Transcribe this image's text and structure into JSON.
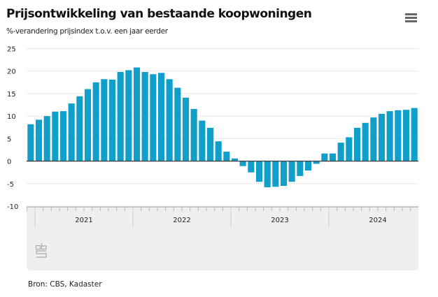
{
  "header": {
    "title": "Prijsontwikkeling van bestaande koopwoningen",
    "subtitle": "%-verandering prijsindex t.o.v. een jaar eerder",
    "menu_icon": "hamburger-menu-icon"
  },
  "footer": {
    "source": "Bron: CBS, Kadaster"
  },
  "colors": {
    "bar": "#109fcb",
    "grid": "#e6e6e6",
    "navigator": "#efefef"
  },
  "chart_data": {
    "type": "bar",
    "title": "Prijsontwikkeling van bestaande koopwoningen",
    "ylabel": "%-verandering prijsindex t.o.v. een jaar eerder",
    "xlabel": "",
    "ylim": [
      -10,
      25
    ],
    "yticks": [
      25,
      20,
      15,
      10,
      5,
      0,
      -5,
      -10
    ],
    "grid": true,
    "years": [
      "2021",
      "2022",
      "2023",
      "2024"
    ],
    "categories": [
      "2021-01",
      "2021-02",
      "2021-03",
      "2021-04",
      "2021-05",
      "2021-06",
      "2021-07",
      "2021-08",
      "2021-09",
      "2021-10",
      "2021-11",
      "2021-12",
      "2022-01",
      "2022-02",
      "2022-03",
      "2022-04",
      "2022-05",
      "2022-06",
      "2022-07",
      "2022-08",
      "2022-09",
      "2022-10",
      "2022-11",
      "2022-12",
      "2023-01",
      "2023-02",
      "2023-03",
      "2023-04",
      "2023-05",
      "2023-06",
      "2023-07",
      "2023-08",
      "2023-09",
      "2023-10",
      "2023-11",
      "2023-12",
      "2024-01",
      "2024-02",
      "2024-03",
      "2024-04",
      "2024-05",
      "2024-06",
      "2024-07",
      "2024-08",
      "2024-09",
      "2024-10",
      "2024-11",
      "2024-12"
    ],
    "values": [
      8.2,
      9.2,
      10.0,
      11.0,
      11.1,
      12.8,
      14.4,
      16.0,
      17.5,
      18.2,
      18.1,
      19.8,
      20.2,
      20.8,
      19.8,
      19.3,
      19.6,
      18.2,
      16.3,
      14.1,
      11.6,
      9.0,
      7.4,
      4.4,
      2.1,
      0.6,
      -1.1,
      -2.5,
      -4.6,
      -5.8,
      -5.7,
      -5.5,
      -4.6,
      -3.3,
      -2.1,
      -0.6,
      1.7,
      1.7,
      4.1,
      5.3,
      7.4,
      8.5,
      9.7,
      10.5,
      11.1,
      11.3,
      11.4,
      11.8
    ]
  }
}
